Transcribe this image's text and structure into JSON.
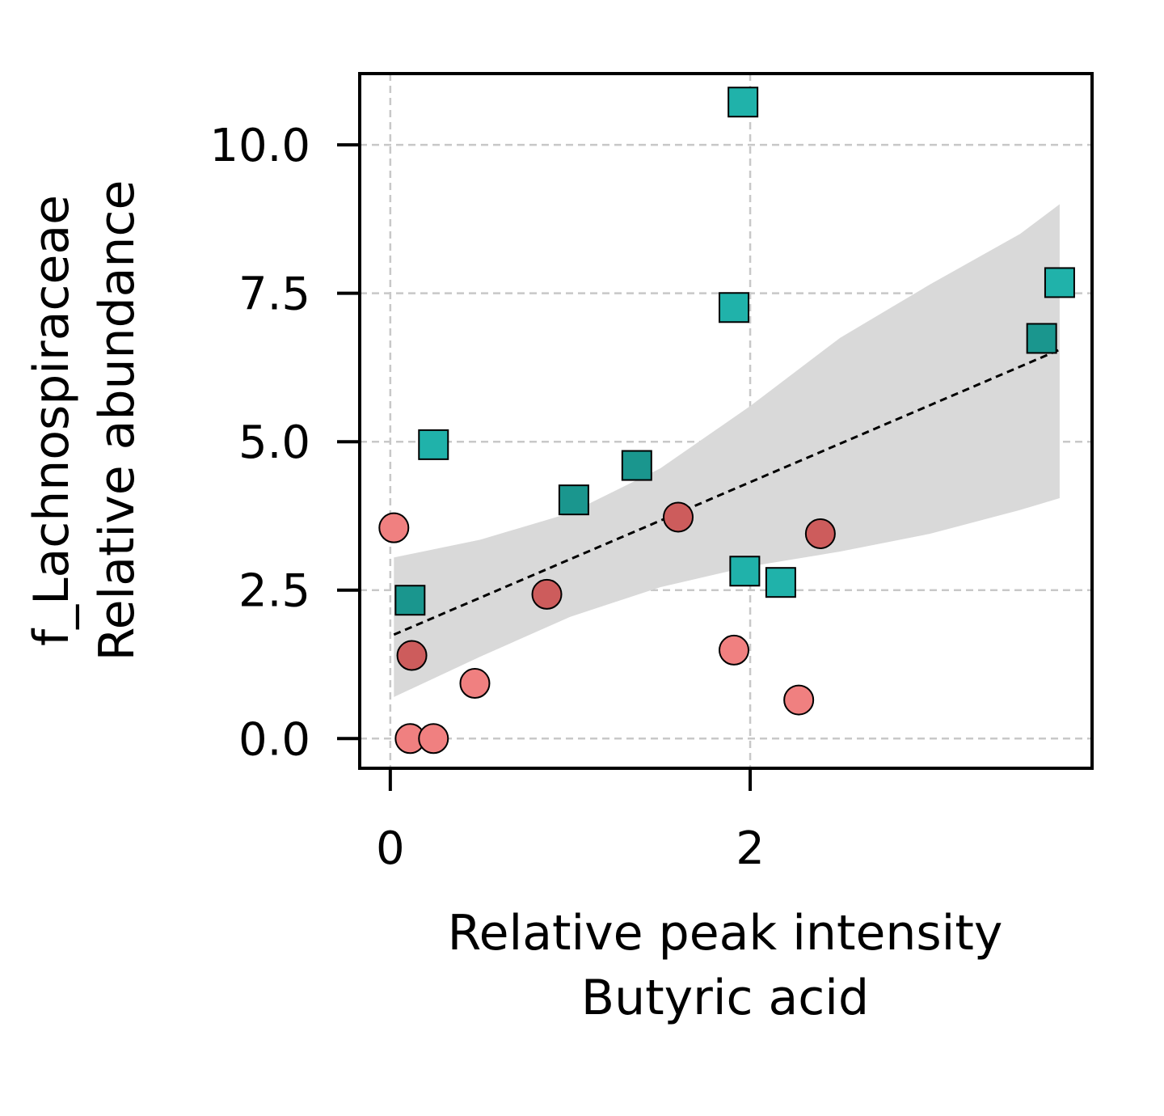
{
  "chart_data": {
    "type": "scatter",
    "xlabel": [
      "Relative peak intensity",
      "Butyric acid"
    ],
    "ylabel": [
      "f_Lachnospiraceae",
      "Relative abundance"
    ],
    "xlim": [
      -0.17,
      3.9
    ],
    "ylim": [
      -0.5,
      11.2
    ],
    "x_ticks": [
      0,
      2
    ],
    "x_tick_labels": [
      "0",
      "2"
    ],
    "y_ticks": [
      0,
      2.5,
      5,
      7.5,
      10
    ],
    "y_tick_labels": [
      "0.0",
      "2.5",
      "5.0",
      "7.5",
      "10.0"
    ],
    "grid": true,
    "colors": {
      "circle_light": "#F08080",
      "circle_dark": "#CD5C5C",
      "square_light": "#20B2AA",
      "square_dark": "#1A968E",
      "band": "#D9D9D9",
      "trend": "#000000",
      "grid": "#C8C8C8"
    },
    "series": [
      {
        "marker": "circle",
        "points": [
          {
            "x": 0.02,
            "y": 3.55,
            "shade": "light"
          },
          {
            "x": 0.12,
            "y": 1.4,
            "shade": "dark"
          },
          {
            "x": 0.11,
            "y": 0.0,
            "shade": "light"
          },
          {
            "x": 0.24,
            "y": 0.0,
            "shade": "light"
          },
          {
            "x": 0.47,
            "y": 0.93,
            "shade": "light"
          },
          {
            "x": 0.87,
            "y": 2.43,
            "shade": "dark"
          },
          {
            "x": 1.6,
            "y": 3.73,
            "shade": "dark"
          },
          {
            "x": 1.91,
            "y": 1.49,
            "shade": "light"
          },
          {
            "x": 2.27,
            "y": 0.65,
            "shade": "light"
          },
          {
            "x": 2.39,
            "y": 3.45,
            "shade": "dark"
          }
        ]
      },
      {
        "marker": "square",
        "points": [
          {
            "x": 0.11,
            "y": 2.33,
            "shade": "dark"
          },
          {
            "x": 0.24,
            "y": 4.95,
            "shade": "light"
          },
          {
            "x": 1.02,
            "y": 4.02,
            "shade": "dark"
          },
          {
            "x": 1.37,
            "y": 4.6,
            "shade": "dark"
          },
          {
            "x": 1.91,
            "y": 7.26,
            "shade": "light"
          },
          {
            "x": 1.96,
            "y": 10.72,
            "shade": "light"
          },
          {
            "x": 1.97,
            "y": 2.82,
            "shade": "light"
          },
          {
            "x": 2.17,
            "y": 2.63,
            "shade": "light"
          },
          {
            "x": 3.62,
            "y": 6.74,
            "shade": "dark"
          },
          {
            "x": 3.72,
            "y": 7.68,
            "shade": "light"
          }
        ]
      }
    ],
    "trend_line": {
      "x": [
        0.02,
        3.72
      ],
      "y": [
        1.75,
        6.55
      ]
    },
    "confidence_band": {
      "x": [
        0.02,
        0.5,
        1.0,
        1.5,
        2.0,
        2.5,
        3.0,
        3.5,
        3.72
      ],
      "lower": [
        0.7,
        1.38,
        2.05,
        2.55,
        2.9,
        3.15,
        3.45,
        3.85,
        4.05
      ],
      "upper": [
        3.05,
        3.35,
        3.8,
        4.55,
        5.6,
        6.75,
        7.65,
        8.5,
        9.0
      ]
    }
  }
}
